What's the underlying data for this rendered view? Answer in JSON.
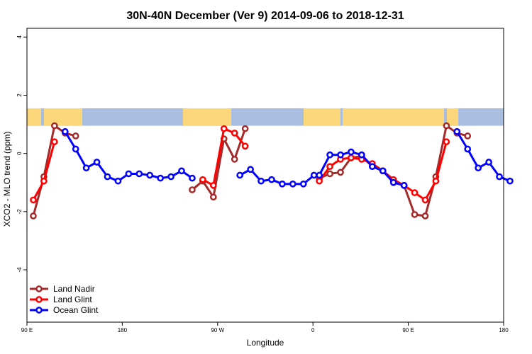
{
  "chart_data": {
    "type": "line",
    "title": "30N-40N December (Ver 9)   2014-09-06 to 2018-12-31",
    "xlabel": "Longitude",
    "ylabel": "XCO2 - MLO trend (ppm)",
    "xlim": [
      90,
      540
    ],
    "ylim": [
      -5.8,
      4.3
    ],
    "x_ticks": [
      {
        "value": 90,
        "label": "90 E"
      },
      {
        "value": 180,
        "label": "180"
      },
      {
        "value": 270,
        "label": "90 W"
      },
      {
        "value": 360,
        "label": "0"
      },
      {
        "value": 450,
        "label": "90 E"
      },
      {
        "value": 540,
        "label": "180"
      }
    ],
    "y_ticks": [
      {
        "value": 4,
        "label": "4"
      },
      {
        "value": 2,
        "label": "2"
      },
      {
        "value": 0,
        "label": "0"
      },
      {
        "value": -2,
        "label": "-2"
      },
      {
        "value": -4,
        "label": "-4"
      }
    ],
    "map_strip": {
      "ymin": 0.95,
      "ymax": 1.55,
      "ocean_color": "#a9bde0",
      "land_color": "#fcd77a"
    },
    "series": [
      {
        "name": "Land Nadir",
        "color": "#a52a2a",
        "segments": [
          [
            [
              96,
              -2.15
            ],
            [
              106,
              -0.8
            ],
            [
              116,
              0.95
            ],
            [
              126,
              0.7
            ],
            [
              136,
              0.6
            ]
          ],
          [
            [
              246,
              -1.25
            ],
            [
              256,
              -0.95
            ],
            [
              266,
              -1.5
            ],
            [
              276,
              0.5
            ],
            [
              286,
              -0.2
            ],
            [
              296,
              0.85
            ]
          ],
          [
            [
              366,
              -0.85
            ],
            [
              376,
              -0.7
            ],
            [
              386,
              -0.65
            ],
            [
              396,
              -0.15
            ],
            [
              406,
              -0.1
            ],
            [
              416,
              -0.45
            ],
            [
              426,
              -0.6
            ],
            [
              436,
              -0.95
            ],
            [
              446,
              -1.1
            ],
            [
              456,
              -2.1
            ],
            [
              466,
              -2.15
            ],
            [
              476,
              -0.8
            ],
            [
              486,
              0.95
            ],
            [
              496,
              0.7
            ],
            [
              506,
              0.6
            ]
          ]
        ]
      },
      {
        "name": "Land Glint",
        "color": "#ff0000",
        "segments": [
          [
            [
              96,
              -1.6
            ],
            [
              106,
              -0.95
            ],
            [
              116,
              0.4
            ]
          ],
          [
            [
              256,
              -0.9
            ],
            [
              266,
              -1.1
            ],
            [
              276,
              0.85
            ],
            [
              286,
              0.7
            ],
            [
              296,
              0.25
            ]
          ],
          [
            [
              366,
              -0.95
            ],
            [
              376,
              -0.45
            ],
            [
              386,
              -0.2
            ],
            [
              396,
              -0.15
            ],
            [
              406,
              -0.2
            ],
            [
              416,
              -0.35
            ],
            [
              426,
              -0.6
            ],
            [
              436,
              -0.9
            ],
            [
              446,
              -1.1
            ],
            [
              456,
              -1.35
            ],
            [
              466,
              -1.6
            ],
            [
              476,
              -0.95
            ],
            [
              486,
              0.4
            ]
          ]
        ]
      },
      {
        "name": "Ocean Glint",
        "color": "#0000ff",
        "segments": [
          [
            [
              126,
              0.75
            ],
            [
              136,
              0.15
            ],
            [
              146,
              -0.5
            ],
            [
              156,
              -0.3
            ],
            [
              166,
              -0.8
            ],
            [
              176,
              -0.95
            ],
            [
              186,
              -0.7
            ],
            [
              196,
              -0.7
            ],
            [
              206,
              -0.75
            ],
            [
              216,
              -0.85
            ],
            [
              226,
              -0.8
            ],
            [
              236,
              -0.6
            ],
            [
              246,
              -0.85
            ]
          ],
          [
            [
              291,
              -0.75
            ],
            [
              301,
              -0.55
            ],
            [
              311,
              -0.95
            ],
            [
              321,
              -0.9
            ],
            [
              331,
              -1.05
            ],
            [
              341,
              -1.05
            ],
            [
              351,
              -1.05
            ],
            [
              361,
              -0.75
            ],
            [
              366,
              -0.75
            ],
            [
              376,
              -0.05
            ],
            [
              386,
              -0.05
            ],
            [
              396,
              0.05
            ],
            [
              406,
              -0.05
            ],
            [
              416,
              -0.45
            ],
            [
              426,
              -0.6
            ],
            [
              436,
              -1.0
            ],
            [
              446,
              -1.1
            ]
          ],
          [
            [
              496,
              0.75
            ],
            [
              506,
              0.15
            ],
            [
              516,
              -0.5
            ],
            [
              526,
              -0.3
            ],
            [
              536,
              -0.8
            ],
            [
              546,
              -0.95
            ]
          ]
        ]
      }
    ],
    "legend": {
      "position": "bottom-left",
      "entries": [
        "Land Nadir",
        "Land Glint",
        "Ocean Glint"
      ]
    }
  }
}
